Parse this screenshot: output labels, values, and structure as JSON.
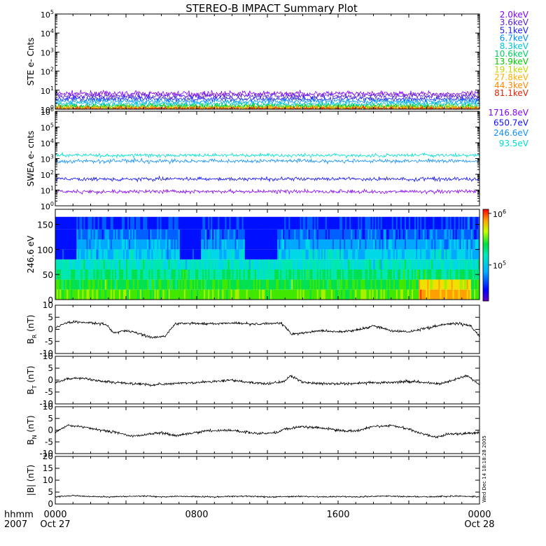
{
  "title": "STEREO-B IMPACT Summary Plot",
  "time_axis": {
    "corner_labels": [
      "hhmm",
      "2007"
    ],
    "ticks": [
      {
        "t": 0,
        "time": "0000",
        "date": "Oct 27"
      },
      {
        "t": 8,
        "time": "0800",
        "date": ""
      },
      {
        "t": 16,
        "time": "1600",
        "date": ""
      },
      {
        "t": 24,
        "time": "0000",
        "date": "Oct 28"
      }
    ],
    "range_hours": [
      0,
      24
    ]
  },
  "stamp": "Wed Dec 14 18:18:28 2005",
  "colors": {
    "ste": [
      "#8000ff",
      "#5a1cd6",
      "#2020ff",
      "#0090ff",
      "#00c8d2",
      "#00d060",
      "#00cc00",
      "#c8d400",
      "#ffb000",
      "#ff8800",
      "#e82000"
    ],
    "swea": [
      "#8800ff",
      "#1010ff",
      "#1090ff",
      "#00e0d0"
    ]
  },
  "chart_data": [
    {
      "id": "ste",
      "type": "line",
      "ylabel": "STE e- Cnts",
      "yscale": "log",
      "ylim": [
        1,
        100000
      ],
      "yticks": [
        "10^0",
        "10^1",
        "10^2",
        "10^3",
        "10^4",
        "10^5"
      ],
      "series": [
        {
          "name": "2.0keV",
          "level": 6.5
        },
        {
          "name": "3.6keV",
          "level": 5.0
        },
        {
          "name": "5.1keV",
          "level": 3.5
        },
        {
          "name": "6.7keV",
          "level": 2.6
        },
        {
          "name": "8.3keV",
          "level": 1.9
        },
        {
          "name": "10.6keV",
          "level": 1.5
        },
        {
          "name": "13.9keV",
          "level": 1.3
        },
        {
          "name": "19.1keV",
          "level": 1.2
        },
        {
          "name": "27.8keV",
          "level": 1.1
        },
        {
          "name": "44.3keV",
          "level": 1.05
        },
        {
          "name": "81.1keV",
          "level": 1.02
        }
      ]
    },
    {
      "id": "swea",
      "type": "line",
      "ylabel": "SWEA e- cnts",
      "yscale": "log",
      "ylim": [
        1,
        1000000
      ],
      "yticks": [
        "10^0",
        "10^1",
        "10^2",
        "10^3",
        "10^4",
        "10^5",
        "10^6"
      ],
      "series": [
        {
          "name": "1716.8eV",
          "level": 8
        },
        {
          "name": "650.7eV",
          "level": 50
        },
        {
          "name": "246.6eV",
          "level": 700
        },
        {
          "name": "93.5eV",
          "level": 1600
        }
      ]
    },
    {
      "id": "pad",
      "type": "heatmap",
      "ylabel": "246.6 eV",
      "ylim": [
        0,
        180
      ],
      "yticks": [
        0,
        50,
        100,
        150
      ],
      "colorbar": {
        "min": 20000,
        "max": 1200000,
        "ticks": [
          "10^5",
          "10^6"
        ]
      }
    },
    {
      "id": "br",
      "type": "line",
      "ylabel": "B_R (nT)",
      "ylim": [
        -10,
        10
      ],
      "yticks": [
        -10,
        -5,
        0,
        5,
        10
      ],
      "x": [
        0,
        0.5,
        1,
        2,
        2.9,
        3.3,
        4,
        4.8,
        5.5,
        6.2,
        6.8,
        8,
        9,
        10,
        11,
        12,
        12.8,
        13.4,
        14,
        15,
        16,
        17,
        18,
        19,
        20,
        21,
        22,
        22.8,
        23.5,
        24
      ],
      "y": [
        0.5,
        2.5,
        3,
        2.8,
        2,
        -1.5,
        -0.5,
        -2,
        -3.5,
        -3,
        2.5,
        2.5,
        2.3,
        2.6,
        2.2,
        2.4,
        2.5,
        -2,
        -1.5,
        -0.5,
        -1,
        -0.5,
        1.5,
        -0.5,
        -1,
        0.5,
        2,
        2.5,
        1.5,
        -3
      ]
    },
    {
      "id": "bt",
      "type": "line",
      "ylabel": "B_T (nT)",
      "ylim": [
        -10,
        10
      ],
      "yticks": [
        -10,
        -5,
        0,
        5,
        10
      ],
      "x": [
        0,
        0.7,
        1.5,
        2.5,
        3.5,
        4.5,
        5.5,
        6.5,
        8,
        9,
        10,
        11,
        12,
        13,
        13.3,
        14,
        15,
        16,
        17,
        18,
        19,
        20,
        21,
        21.8,
        22.5,
        23.3,
        24
      ],
      "y": [
        -1,
        0.5,
        1,
        -0.5,
        -1,
        -1.5,
        -2,
        -1.5,
        -1,
        -0.5,
        0,
        -1,
        -1.5,
        -0.5,
        2,
        -1,
        -1.5,
        -1.5,
        -1.5,
        -1,
        -1,
        -0.5,
        -1,
        -1.5,
        0,
        2,
        -2
      ]
    },
    {
      "id": "bn",
      "type": "line",
      "ylabel": "B_N (nT)",
      "ylim": [
        -10,
        10
      ],
      "yticks": [
        -10,
        -5,
        0,
        5,
        10
      ],
      "x": [
        0,
        0.7,
        1.5,
        2.5,
        3.5,
        4.2,
        5,
        6,
        6.8,
        7.5,
        8.5,
        9.5,
        10.5,
        11.5,
        12.5,
        13,
        14,
        15,
        16,
        17,
        18,
        19,
        20,
        20.5,
        21.5,
        22.3,
        23,
        24
      ],
      "y": [
        -1,
        2,
        1.5,
        0,
        -1,
        -2.5,
        -2,
        -1,
        -2.5,
        -1.5,
        -0.5,
        0,
        -0.5,
        -1.5,
        -1,
        0.5,
        1.5,
        1,
        0,
        -0.5,
        1.5,
        2,
        0.5,
        -1,
        -3,
        -1.5,
        -1.5,
        -1
      ]
    },
    {
      "id": "bmag",
      "type": "line",
      "ylabel": "|B| (nT)",
      "ylim": [
        0,
        20
      ],
      "yticks": [
        0,
        5,
        10,
        15,
        20
      ],
      "x": [
        0,
        1,
        2,
        3,
        4,
        5,
        6,
        7,
        8,
        9,
        10,
        11,
        12,
        13,
        14,
        15,
        16,
        17,
        18,
        19,
        20,
        21,
        22,
        23,
        24
      ],
      "y": [
        3,
        3.5,
        3.2,
        3,
        3.2,
        3.4,
        3,
        3.3,
        3.1,
        3,
        3.2,
        3.3,
        3,
        3.1,
        3.2,
        3,
        3.1,
        3,
        3.2,
        3.3,
        3.1,
        3,
        3.2,
        3.3,
        3
      ]
    }
  ]
}
